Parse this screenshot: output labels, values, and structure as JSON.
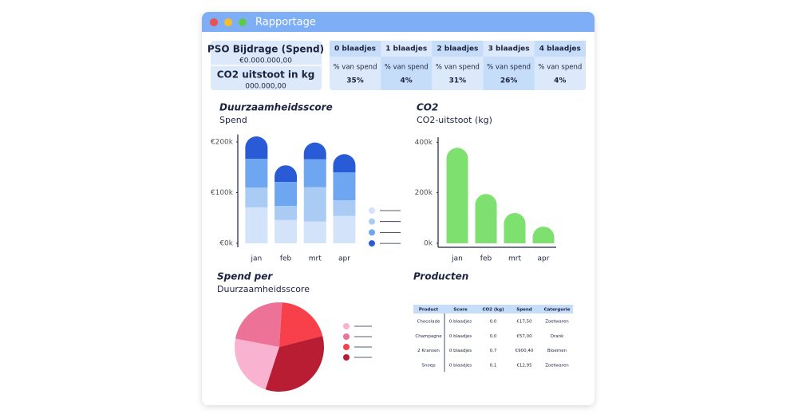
{
  "window": {
    "title": "Rapportage"
  },
  "summary": [
    {
      "label": "PSO Bijdrage (Spend)",
      "value": "€0.000.000,00"
    },
    {
      "label": "CO2 uitstoot in kg",
      "value": "000.000,00"
    }
  ],
  "distribution": [
    {
      "header": "0 blaadjes",
      "sub": "% van spend",
      "value": "35%"
    },
    {
      "header": "1 blaadjes",
      "sub": "% van spend",
      "value": "4%"
    },
    {
      "header": "2 blaadjes",
      "sub": "% van spend",
      "value": "31%"
    },
    {
      "header": "3 blaadjes",
      "sub": "% van spend",
      "value": "26%"
    },
    {
      "header": "4 blaadjes",
      "sub": "% van spend",
      "value": "4%"
    }
  ],
  "chart_data": [
    {
      "type": "stacked-bar",
      "title": "Duurzaamheidsscore",
      "subtitle": "Spend",
      "categories": [
        "jan",
        "feb",
        "mrt",
        "apr"
      ],
      "series": [
        {
          "color": "#d3e3fa",
          "values": [
            71000,
            46000,
            43000,
            54000
          ]
        },
        {
          "color": "#a9cbf4",
          "values": [
            39000,
            28000,
            68000,
            31000
          ]
        },
        {
          "color": "#6fa6f1",
          "values": [
            57000,
            47000,
            55000,
            55000
          ]
        },
        {
          "color": "#2a5bd7",
          "values": [
            44000,
            33000,
            33000,
            36000
          ]
        }
      ],
      "ylim": [
        0,
        215000
      ],
      "yticks": [
        {
          "value": 0,
          "label": "€0k"
        },
        {
          "value": 100000,
          "label": "€100k"
        },
        {
          "value": 200000,
          "label": "€200k"
        }
      ]
    },
    {
      "type": "bar",
      "title": "CO2",
      "subtitle": "CO2-uitstoot (kg)",
      "categories": [
        "jan",
        "feb",
        "mrt",
        "apr"
      ],
      "values": [
        378000,
        195000,
        120000,
        66000
      ],
      "color": "#7ee06e",
      "ylim": [
        0,
        420000
      ],
      "yticks": [
        {
          "value": 0,
          "label": "0k"
        },
        {
          "value": 200000,
          "label": "200k"
        },
        {
          "value": 400000,
          "label": "400k"
        }
      ]
    },
    {
      "type": "pie",
      "title": "Spend per",
      "subtitle": "Duurzaamheidsscore",
      "values": [
        23,
        23,
        20,
        34
      ],
      "colors": [
        "#f9b3d1",
        "#ec7397",
        "#f7404a",
        "#b81d33"
      ]
    }
  ],
  "products": {
    "title": "Producten",
    "header": [
      "Product",
      "Score",
      "CO2 (kg)",
      "Spend",
      "Catergorie"
    ],
    "rows": [
      [
        "Chocolade",
        "0 blaadjes",
        "0,0",
        "€17,50",
        "Zoetwaren"
      ],
      [
        "Champagne",
        "0 blaadjes",
        "0,0",
        "€57,00",
        "Drank"
      ],
      [
        "2 Kransen",
        "0 blaadjes",
        "0,7",
        "€900,40",
        "Bloemen"
      ],
      [
        "Snoep",
        "0 blaadjes",
        "0,1",
        "€12,95",
        "Zoetwaren"
      ]
    ]
  }
}
